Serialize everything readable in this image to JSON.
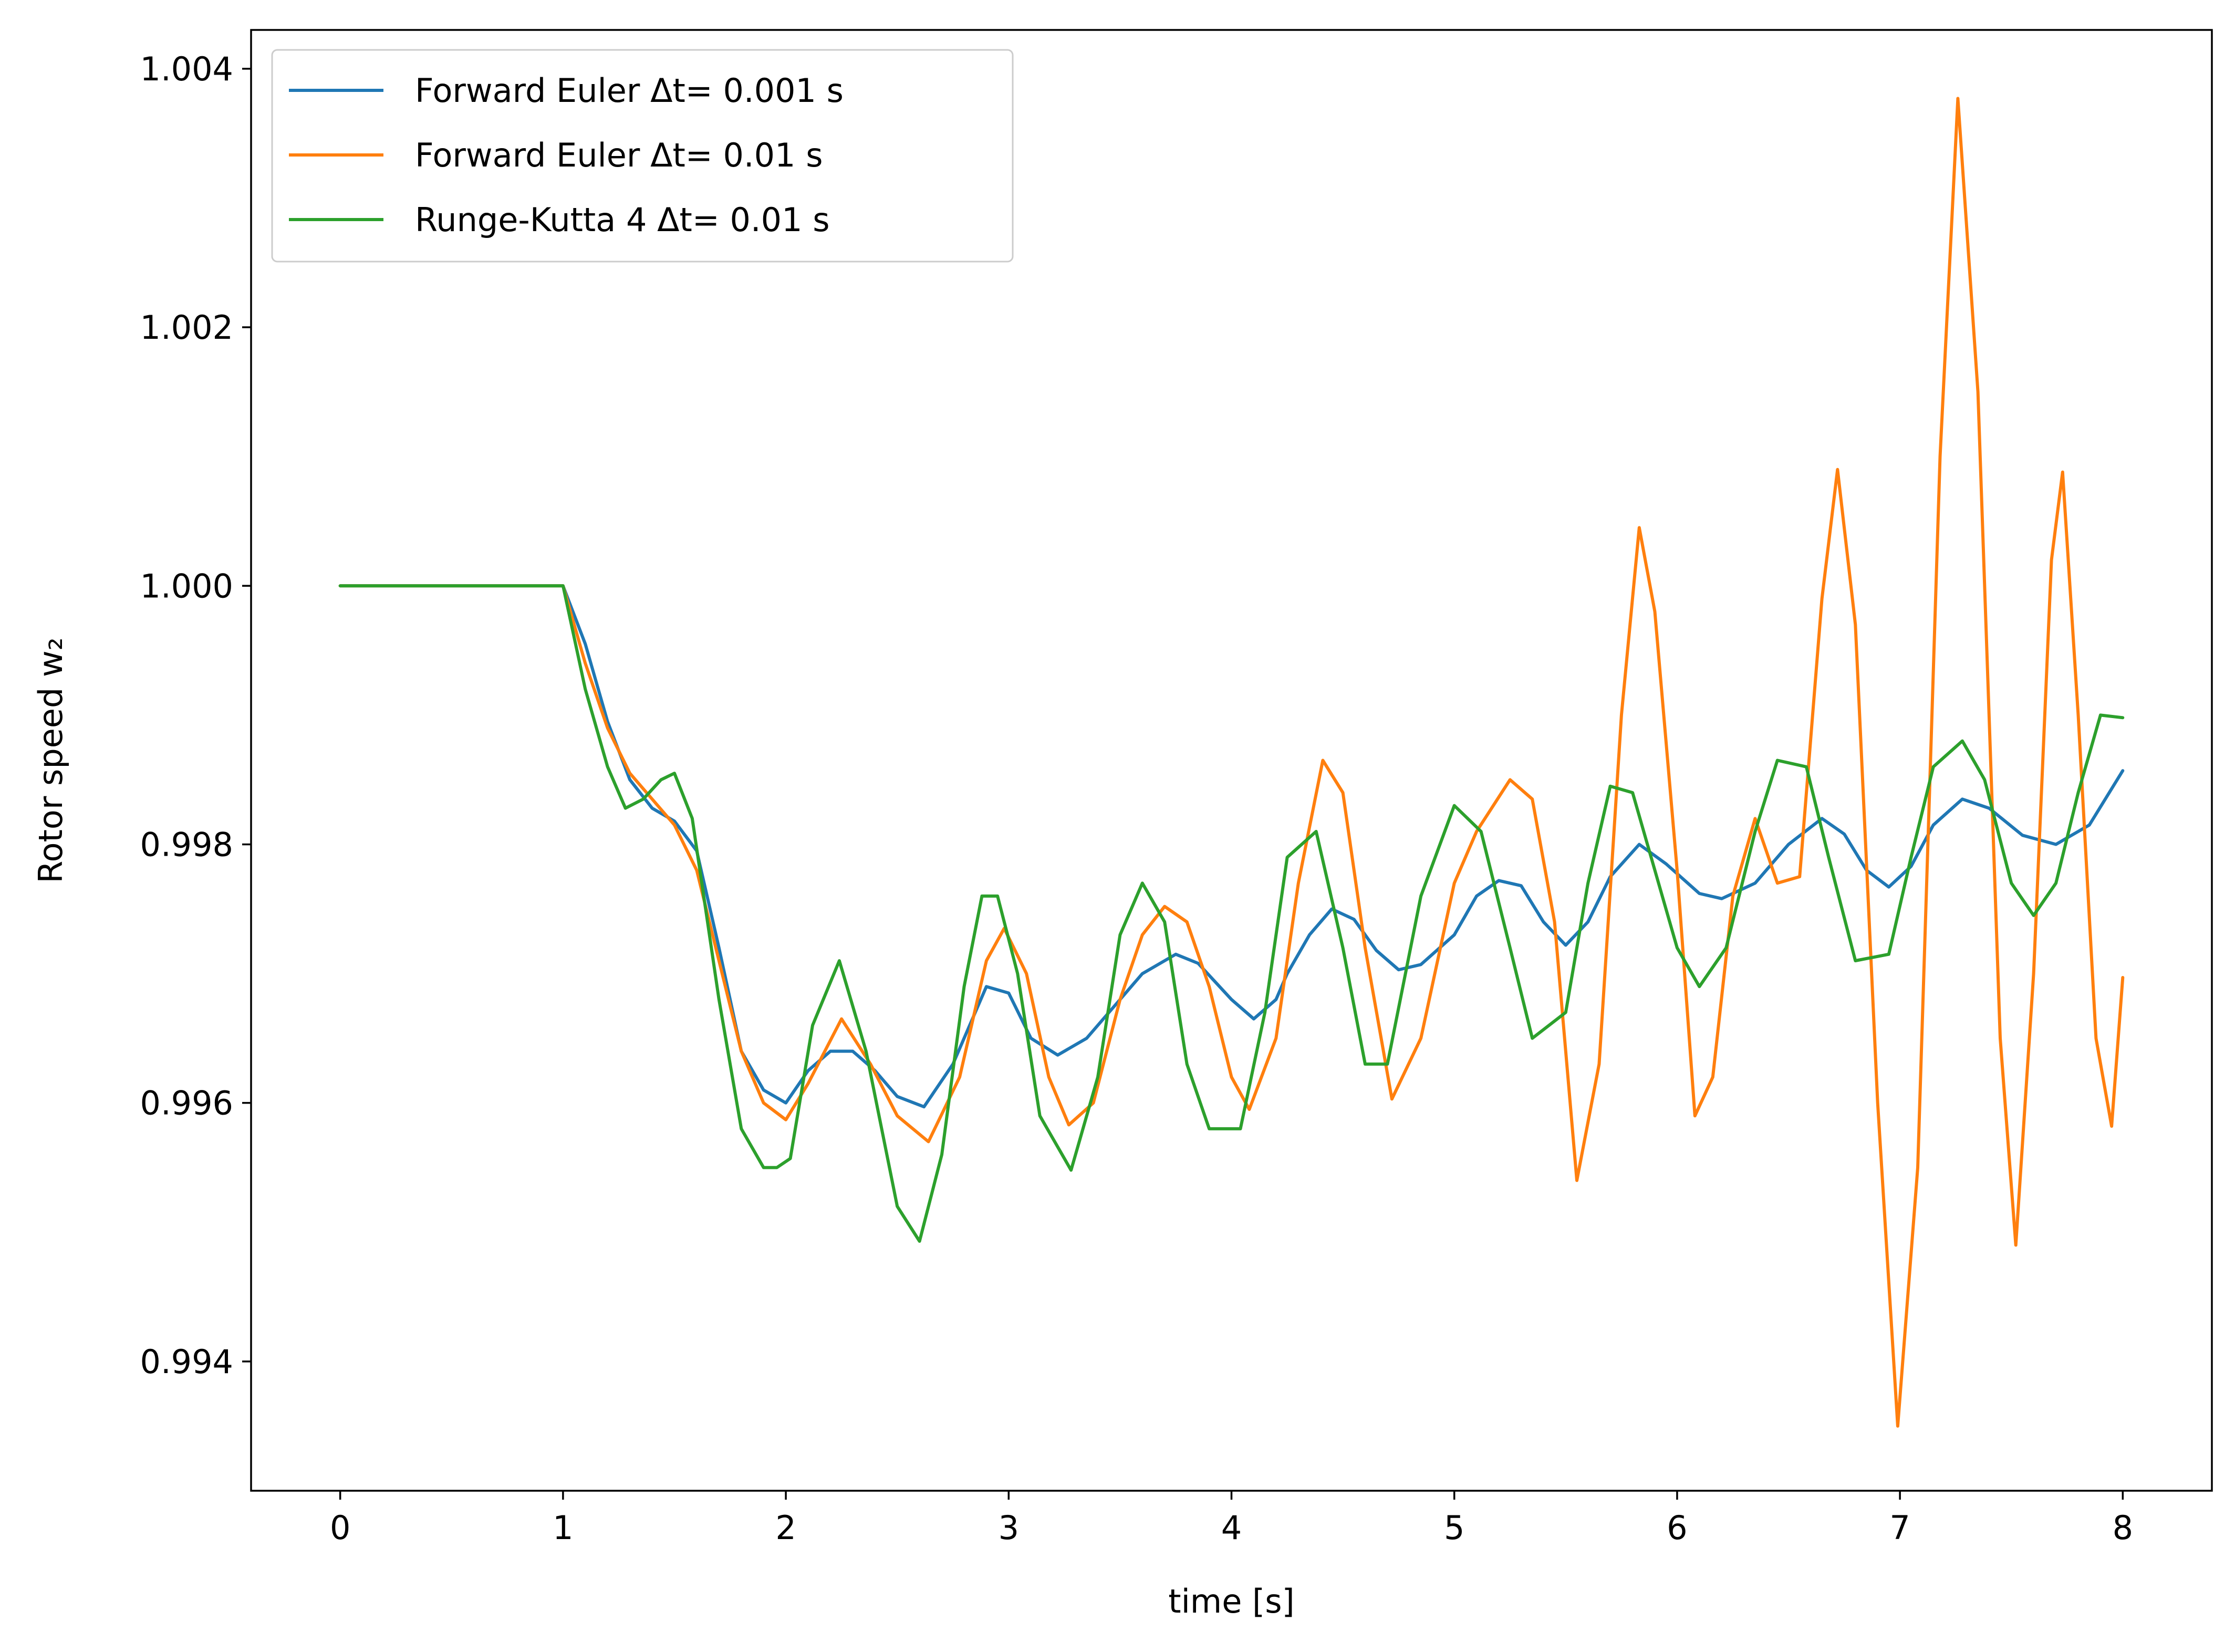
{
  "chart_data": {
    "type": "line",
    "title": "",
    "xlabel": "time [s]",
    "ylabel": "Rotor speed w₂",
    "xlim": [
      -0.4,
      8.4
    ],
    "ylim": [
      0.993,
      1.0043
    ],
    "xticks": [
      0,
      1,
      2,
      3,
      4,
      5,
      6,
      7,
      8
    ],
    "xtick_labels": [
      "0",
      "1",
      "2",
      "3",
      "4",
      "5",
      "6",
      "7",
      "8"
    ],
    "yticks": [
      0.994,
      0.996,
      0.998,
      1.0,
      1.002,
      1.004
    ],
    "ytick_labels": [
      "0.994",
      "0.996",
      "0.998",
      "1.000",
      "1.002",
      "1.004"
    ],
    "grid": false,
    "legend_position": "top-left",
    "series": [
      {
        "name": "Forward Euler Δt= 0.001 s",
        "color": "#1f77b4",
        "x": [
          0,
          1.0,
          1.1,
          1.2,
          1.3,
          1.4,
          1.5,
          1.6,
          1.7,
          1.8,
          1.9,
          2.0,
          2.1,
          2.2,
          2.3,
          2.4,
          2.5,
          2.62,
          2.75,
          2.9,
          3.0,
          3.1,
          3.22,
          3.35,
          3.5,
          3.6,
          3.75,
          3.85,
          4.0,
          4.1,
          4.2,
          4.25,
          4.35,
          4.45,
          4.55,
          4.65,
          4.75,
          4.85,
          5.0,
          5.1,
          5.2,
          5.3,
          5.4,
          5.5,
          5.6,
          5.7,
          5.83,
          5.95,
          6.1,
          6.2,
          6.35,
          6.5,
          6.65,
          6.75,
          6.85,
          6.95,
          7.05,
          7.15,
          7.28,
          7.4,
          7.55,
          7.7,
          7.85,
          8.0
        ],
        "y": [
          1.0,
          1.0,
          0.99955,
          0.99895,
          0.9985,
          0.99828,
          0.99818,
          0.99795,
          0.9972,
          0.9964,
          0.9961,
          0.996,
          0.99625,
          0.9964,
          0.9964,
          0.99625,
          0.99605,
          0.99597,
          0.9963,
          0.9969,
          0.99685,
          0.9965,
          0.99637,
          0.9965,
          0.9968,
          0.997,
          0.99715,
          0.99708,
          0.9968,
          0.99665,
          0.9968,
          0.997,
          0.9973,
          0.9975,
          0.99742,
          0.99718,
          0.99703,
          0.99707,
          0.9973,
          0.9976,
          0.99772,
          0.99768,
          0.9974,
          0.99722,
          0.9974,
          0.99775,
          0.998,
          0.99785,
          0.99762,
          0.99758,
          0.9977,
          0.998,
          0.9982,
          0.99808,
          0.9978,
          0.99767,
          0.99783,
          0.99815,
          0.99835,
          0.99828,
          0.99807,
          0.998,
          0.99815,
          0.99857
        ]
      },
      {
        "name": "Forward Euler Δt= 0.01 s",
        "color": "#ff7f0e",
        "x": [
          0,
          1.0,
          1.1,
          1.2,
          1.3,
          1.4,
          1.5,
          1.6,
          1.7,
          1.8,
          1.9,
          2.0,
          2.1,
          2.25,
          2.38,
          2.5,
          2.64,
          2.78,
          2.9,
          2.98,
          3.08,
          3.18,
          3.27,
          3.38,
          3.5,
          3.6,
          3.7,
          3.8,
          3.9,
          4.0,
          4.08,
          4.2,
          4.3,
          4.41,
          4.5,
          4.6,
          4.72,
          4.85,
          5.0,
          5.1,
          5.25,
          5.35,
          5.45,
          5.55,
          5.65,
          5.75,
          5.83,
          5.9,
          6.0,
          6.08,
          6.16,
          6.25,
          6.35,
          6.45,
          6.55,
          6.65,
          6.72,
          6.8,
          6.9,
          6.99,
          7.08,
          7.18,
          7.26,
          7.35,
          7.45,
          7.52,
          7.6,
          7.68,
          7.73,
          7.8,
          7.88,
          7.95,
          8.0
        ],
        "y": [
          1.0,
          1.0,
          0.9994,
          0.9989,
          0.99855,
          0.99835,
          0.99815,
          0.9978,
          0.9971,
          0.9964,
          0.996,
          0.99587,
          0.99615,
          0.99665,
          0.9963,
          0.9959,
          0.9957,
          0.9962,
          0.9971,
          0.99735,
          0.997,
          0.9962,
          0.99583,
          0.996,
          0.9968,
          0.9973,
          0.99752,
          0.9974,
          0.9969,
          0.9962,
          0.99595,
          0.9965,
          0.9977,
          0.99865,
          0.9984,
          0.9972,
          0.99603,
          0.9965,
          0.9977,
          0.9981,
          0.9985,
          0.99835,
          0.9974,
          0.9954,
          0.9963,
          0.999,
          1.00045,
          0.9998,
          0.9978,
          0.9959,
          0.9962,
          0.9976,
          0.9982,
          0.9977,
          0.99775,
          0.9999,
          1.0009,
          0.9997,
          0.996,
          0.9935,
          0.9955,
          1.001,
          1.00377,
          1.0015,
          0.9965,
          0.9949,
          0.997,
          1.0002,
          1.00088,
          0.999,
          0.9965,
          0.99582,
          0.99697
        ]
      },
      {
        "name": "Runge-Kutta 4 Δt= 0.01 s",
        "color": "#2ca02c",
        "x": [
          0,
          1.0,
          1.1,
          1.2,
          1.28,
          1.36,
          1.44,
          1.5,
          1.58,
          1.7,
          1.8,
          1.9,
          1.96,
          2.02,
          2.12,
          2.24,
          2.36,
          2.5,
          2.6,
          2.7,
          2.8,
          2.88,
          2.95,
          3.04,
          3.14,
          3.28,
          3.4,
          3.5,
          3.6,
          3.7,
          3.8,
          3.9,
          4.04,
          4.15,
          4.25,
          4.38,
          4.5,
          4.6,
          4.7,
          4.85,
          5.0,
          5.12,
          5.25,
          5.35,
          5.5,
          5.6,
          5.7,
          5.8,
          5.9,
          6.0,
          6.1,
          6.22,
          6.35,
          6.45,
          6.58,
          6.68,
          6.8,
          6.95,
          7.05,
          7.15,
          7.28,
          7.38,
          7.5,
          7.6,
          7.7,
          7.8,
          7.9,
          8.0
        ],
        "y": [
          1.0,
          1.0,
          0.9992,
          0.9986,
          0.99828,
          0.99835,
          0.9985,
          0.99855,
          0.9982,
          0.9968,
          0.9958,
          0.9955,
          0.9955,
          0.99557,
          0.9966,
          0.9971,
          0.9964,
          0.9952,
          0.99493,
          0.9956,
          0.9969,
          0.9976,
          0.9976,
          0.997,
          0.9959,
          0.99548,
          0.9962,
          0.9973,
          0.9977,
          0.9974,
          0.9963,
          0.9958,
          0.9958,
          0.9967,
          0.9979,
          0.9981,
          0.9972,
          0.9963,
          0.9963,
          0.9976,
          0.9983,
          0.9981,
          0.9972,
          0.9965,
          0.9967,
          0.9977,
          0.99845,
          0.9984,
          0.9978,
          0.9972,
          0.9969,
          0.9972,
          0.9981,
          0.99865,
          0.9986,
          0.9979,
          0.9971,
          0.99715,
          0.9979,
          0.9986,
          0.9988,
          0.9985,
          0.9977,
          0.99745,
          0.9977,
          0.9984,
          0.999,
          0.99898
        ]
      }
    ]
  }
}
